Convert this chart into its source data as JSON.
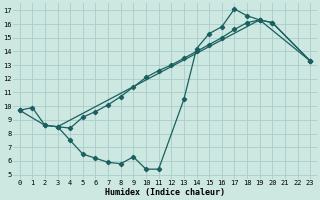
{
  "xlabel": "Humidex (Indice chaleur)",
  "bg_color": "#cce8e0",
  "grid_color": "#aacccc",
  "line_color": "#1a6060",
  "xlim_min": -0.5,
  "xlim_max": 23.5,
  "ylim_min": 4.7,
  "ylim_max": 17.5,
  "xticks": [
    0,
    1,
    2,
    3,
    4,
    5,
    6,
    7,
    8,
    9,
    10,
    11,
    12,
    13,
    14,
    15,
    16,
    17,
    18,
    19,
    20,
    21,
    22,
    23
  ],
  "yticks": [
    5,
    6,
    7,
    8,
    9,
    10,
    11,
    12,
    13,
    14,
    15,
    16,
    17
  ],
  "line1_x": [
    0,
    1,
    2,
    3,
    4,
    5,
    6,
    7,
    8,
    9,
    10,
    11,
    13,
    14,
    15,
    16,
    17,
    18,
    19,
    23
  ],
  "line1_y": [
    9.7,
    9.9,
    8.6,
    8.5,
    7.5,
    6.5,
    6.2,
    5.9,
    5.8,
    6.3,
    5.4,
    5.4,
    10.5,
    14.2,
    15.3,
    15.8,
    17.1,
    16.6,
    16.3,
    13.3
  ],
  "line2_x": [
    0,
    2,
    3,
    19,
    20,
    23
  ],
  "line2_y": [
    9.7,
    8.6,
    8.5,
    16.3,
    16.1,
    13.3
  ],
  "line3_x": [
    3,
    4,
    5,
    6,
    7,
    8,
    9,
    10,
    11,
    12,
    13,
    14,
    15,
    16,
    17,
    18,
    19,
    20,
    23
  ],
  "line3_y": [
    8.5,
    8.4,
    9.2,
    9.6,
    10.1,
    10.7,
    11.4,
    12.1,
    12.6,
    13.0,
    13.5,
    14.0,
    14.5,
    15.0,
    15.6,
    16.1,
    16.3,
    16.1,
    13.3
  ]
}
